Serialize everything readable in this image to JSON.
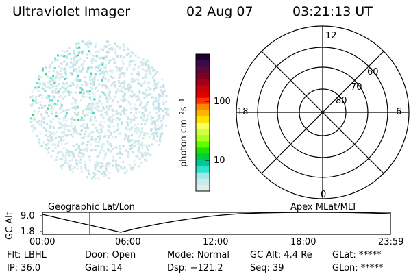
{
  "header": {
    "title": "Ultraviolet Imager",
    "date": "02 Aug 07",
    "time": "03:21:13 UT"
  },
  "colorbar": {
    "unit_label": "photon cm⁻²s⁻¹",
    "ticks": [
      "100",
      "10"
    ],
    "colors": [
      "#1a0033",
      "#3a0a4a",
      "#5a0a3a",
      "#800020",
      "#a00018",
      "#c80010",
      "#e00000",
      "#ff3300",
      "#ff8800",
      "#ffb400",
      "#ffe000",
      "#f8ff60",
      "#d0ff40",
      "#a8ff20",
      "#60ff00",
      "#20e000",
      "#00cc40",
      "#00c890",
      "#30e0d0",
      "#a0e8e8",
      "#c8ecec",
      "#e0eeee"
    ]
  },
  "polar": {
    "labels": {
      "top": "12",
      "bottom": "0",
      "left": "18",
      "right": "6"
    },
    "rings": [
      "60",
      "70",
      "80"
    ]
  },
  "timeline": {
    "ylabel": "GC Alt",
    "ytick_top": "9.0",
    "ytick_bottom": "1.8",
    "left_caption": "Geographic Lat/Lon",
    "right_caption": "Apex MLat/MLT",
    "x_ticks": [
      "00:00",
      "06:00",
      "12:00",
      "18:00",
      "23:59"
    ]
  },
  "info": {
    "flt": "Flt: LBHL",
    "ip": "IP: 36.0",
    "door": "Door: Open",
    "gain": "Gain: 14",
    "mode": "Mode: Normal",
    "dsp": "Dsp: −121.2",
    "gcalt": "GC Alt: 4.4 Re",
    "seq": "Seq: 39",
    "glat": "GLat: *****",
    "glon": "GLon: *****"
  }
}
